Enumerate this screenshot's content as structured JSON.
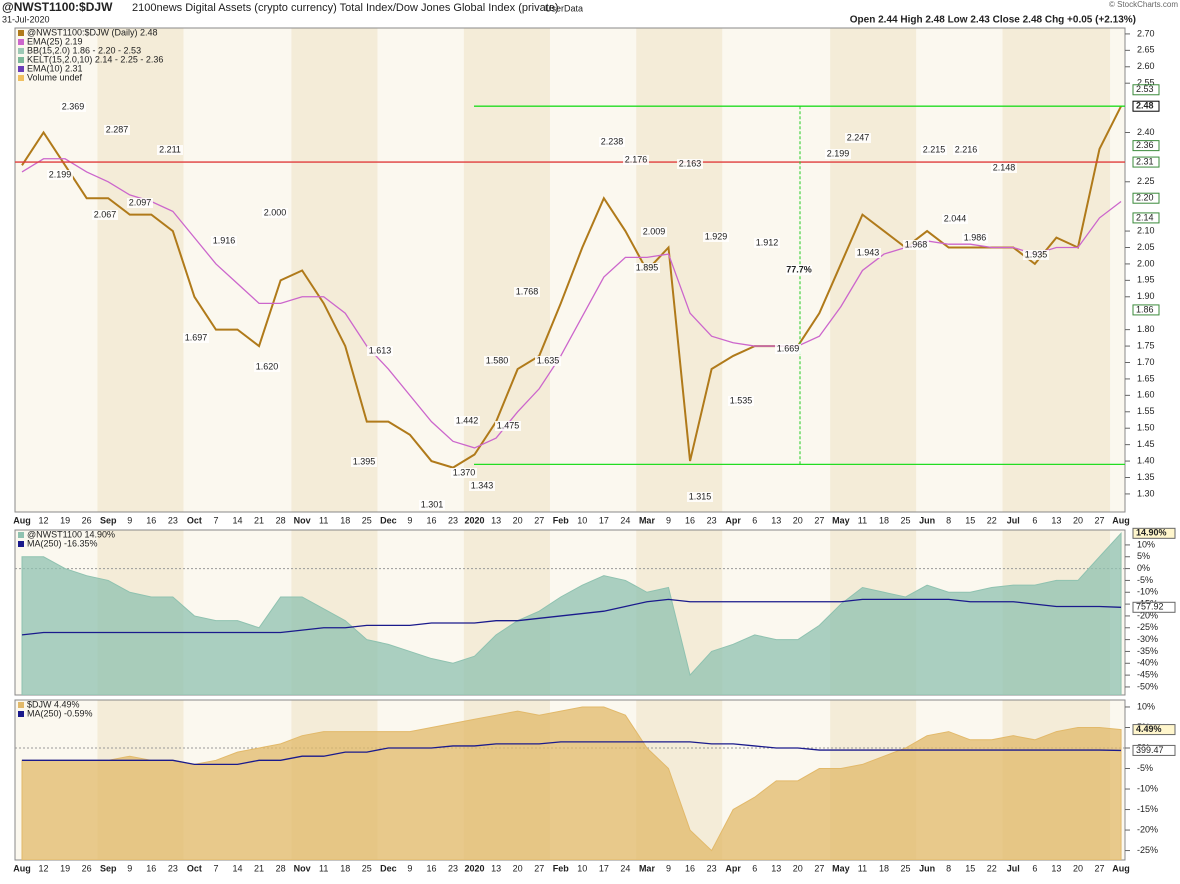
{
  "header": {
    "title": "@NWST1100:$DJW",
    "subtitle": "2100news Digital Assets (crypto currency) Total Index/Dow Jones Global Index (private)",
    "source": "UserData",
    "date": "31-Jul-2020",
    "quote": "Open 2.44  High 2.48  Low 2.43  Close 2.48  Chg +0.05 (+2.13%)",
    "credit": "© StockCharts.com"
  },
  "chart_data": [
    {
      "type": "line",
      "categories": [
        "Aug",
        "12",
        "19",
        "26",
        "Sep",
        "9",
        "16",
        "23",
        "Oct",
        "7",
        "14",
        "21",
        "28",
        "Nov",
        "11",
        "18",
        "25",
        "Dec",
        "9",
        "16",
        "23",
        "2020",
        "13",
        "20",
        "27",
        "Feb",
        "10",
        "17",
        "24",
        "Mar",
        "9",
        "16",
        "23",
        "Apr",
        "6",
        "13",
        "20",
        "27",
        "May",
        "11",
        "18",
        "25",
        "Jun",
        "8",
        "15",
        "22",
        "Jul",
        "6",
        "13",
        "20",
        "27",
        "Aug"
      ],
      "series": [
        {
          "name": "@NWST1100:$DJW (Daily) 2.48",
          "color": "#b07a1a",
          "values": [
            2.3,
            2.4,
            2.3,
            2.2,
            2.2,
            2.15,
            2.15,
            2.1,
            1.9,
            1.8,
            1.8,
            1.75,
            1.95,
            1.98,
            1.88,
            1.75,
            1.52,
            1.52,
            1.48,
            1.4,
            1.38,
            1.42,
            1.52,
            1.68,
            1.72,
            1.88,
            2.05,
            2.2,
            2.1,
            1.98,
            2.05,
            1.4,
            1.68,
            1.72,
            1.75,
            1.75,
            1.75,
            1.85,
            2.0,
            2.15,
            2.1,
            2.05,
            2.1,
            2.05,
            2.05,
            2.05,
            2.05,
            2.0,
            2.08,
            2.05,
            2.35,
            2.48
          ]
        },
        {
          "name": "EMA(25) 2.19",
          "color": "#cc66cc",
          "values": [
            2.28,
            2.32,
            2.32,
            2.28,
            2.25,
            2.21,
            2.19,
            2.16,
            2.08,
            2.0,
            1.94,
            1.88,
            1.88,
            1.9,
            1.9,
            1.85,
            1.75,
            1.68,
            1.6,
            1.52,
            1.46,
            1.44,
            1.47,
            1.55,
            1.62,
            1.72,
            1.84,
            1.96,
            2.02,
            2.02,
            2.03,
            1.85,
            1.78,
            1.76,
            1.75,
            1.75,
            1.75,
            1.78,
            1.87,
            1.98,
            2.03,
            2.05,
            2.07,
            2.06,
            2.06,
            2.05,
            2.05,
            2.03,
            2.05,
            2.05,
            2.14,
            2.19
          ]
        }
      ],
      "legend_extra": [
        "BB(15,2.0) 1.86 - 2.20 - 2.53",
        "KELT(15,2.0,10) 2.14 - 2.25 - 2.36",
        "EMA(10) 2.31",
        "Volume undef"
      ],
      "ylim": [
        1.245,
        2.718
      ],
      "yticks": [
        {
          "value": 2.7,
          "label": "2.70"
        },
        2.65,
        {
          "value": 2.6,
          "label": "2.60"
        },
        2.55,
        {
          "value": 2.4,
          "label": "2.40"
        },
        2.25,
        {
          "value": 2.1,
          "label": "2.10"
        },
        2.05,
        {
          "value": 2,
          "label": "2.00"
        },
        1.95,
        {
          "value": 1.9,
          "label": "1.90"
        },
        {
          "value": 1.8,
          "label": "1.80"
        },
        1.75,
        {
          "value": 1.7,
          "label": "1.70"
        },
        1.65,
        {
          "value": 1.6,
          "label": "1.60"
        },
        1.55,
        {
          "value": 1.5,
          "label": "1.50"
        },
        1.45,
        {
          "value": 1.4,
          "label": "1.40"
        },
        1.35,
        {
          "value": 1.3,
          "label": "1.30"
        }
      ],
      "price_tags": [
        2.53,
        2.48,
        2.36,
        2.31,
        {
          "value": 2.2,
          "label": "2.20"
        },
        2.14,
        1.86
      ],
      "levels": [
        {
          "value": 2.48,
          "color": "#22dd22"
        },
        {
          "value": 1.39,
          "color": "#22dd22"
        },
        {
          "value": 2.31,
          "color": "#e03c3c"
        }
      ],
      "annotations": [
        "2.369",
        "2.287",
        "2.199",
        "2.067",
        "2.097",
        "2.211",
        "1.916",
        "2.000",
        "1.697",
        "1.620",
        "1.613",
        "1.395",
        "1.301",
        "1.442",
        "1.370",
        "1.343",
        "1.475",
        "1.580",
        "1.768",
        "1.635",
        "2.238",
        "2.176",
        "2.009",
        "1.895",
        "2.163",
        "1.929",
        "1.315",
        "1.535",
        "1.912",
        "1.669",
        "2.247",
        "2.199",
        "1.943",
        "1.968",
        "2.215",
        "2.216",
        "2.044",
        "1.986",
        "2.148",
        "1.935",
        "77.7%"
      ]
    },
    {
      "type": "area",
      "series": [
        {
          "name": "@NWST1100 14.90%",
          "color": "#8fc2b0",
          "values": [
            5,
            5,
            0,
            -3,
            -5,
            -10,
            -12,
            -12,
            -20,
            -22,
            -22,
            -25,
            -12,
            -12,
            -17,
            -22,
            -30,
            -32,
            -35,
            -38,
            -40,
            -37,
            -28,
            -22,
            -18,
            -12,
            -7,
            -3,
            -5,
            -10,
            -8,
            -45,
            -35,
            -32,
            -28,
            -30,
            -30,
            -24,
            -15,
            -8,
            -10,
            -12,
            -7,
            -10,
            -10,
            -8,
            -7,
            -7,
            -5,
            -5,
            5,
            14.9
          ]
        },
        {
          "name": "MA(250) -16.35%",
          "color": "#1a1a8c",
          "values": [
            -28,
            -27,
            -27,
            -27,
            -27,
            -27,
            -27,
            -27,
            -27,
            -27,
            -27,
            -27,
            -27,
            -26,
            -25,
            -25,
            -24,
            -24,
            -24,
            -23,
            -23,
            -23,
            -22,
            -22,
            -21,
            -20,
            -19,
            -18,
            -16,
            -14,
            -13,
            -14,
            -14,
            -14,
            -14,
            -14,
            -14,
            -14,
            -14,
            -13,
            -13,
            -13,
            -13,
            -13,
            -14,
            -14,
            -14,
            -15,
            -16,
            -16,
            -16,
            -16.35
          ]
        }
      ],
      "ylim": [
        -53.4,
        16.3
      ],
      "yticks": [
        {
          "value": 10,
          "label": "10%"
        },
        {
          "value": 5,
          "label": "5%"
        },
        {
          "value": 0,
          "label": "0%"
        },
        {
          "value": -5,
          "label": "-5%"
        },
        {
          "value": -10,
          "label": "-10%"
        },
        {
          "value": -15,
          "label": "-15%"
        },
        {
          "value": -20,
          "label": "-20%"
        },
        {
          "value": -25,
          "label": "-25%"
        },
        {
          "value": -30,
          "label": "-30%"
        },
        {
          "value": -35,
          "label": "-35%"
        },
        {
          "value": -40,
          "label": "-40%"
        },
        {
          "value": -45,
          "label": "-45%"
        },
        {
          "value": -50,
          "label": "-50%"
        }
      ],
      "tags": [
        "14.90%",
        "757.92"
      ]
    },
    {
      "type": "area",
      "categories": [
        "Aug",
        "12",
        "19",
        "26",
        "Sep",
        "9",
        "16",
        "23",
        "Oct",
        "7",
        "14",
        "21",
        "28",
        "Nov",
        "11",
        "18",
        "25",
        "Dec",
        "9",
        "16",
        "23",
        "2020",
        "13",
        "20",
        "27",
        "Feb",
        "10",
        "17",
        "24",
        "Mar",
        "9",
        "16",
        "23",
        "Apr",
        "6",
        "13",
        "20",
        "27",
        "May",
        "11",
        "18",
        "25",
        "Jun",
        "8",
        "15",
        "22",
        "Jul",
        "6",
        "13",
        "20",
        "27",
        "Aug"
      ],
      "series": [
        {
          "name": "$DJW 4.49%",
          "color": "#e2b96a",
          "values": [
            -3,
            -3,
            -3,
            -3,
            -3,
            -2,
            -3,
            -3,
            -4,
            -3,
            -1,
            0,
            1,
            3,
            4,
            4,
            4,
            4,
            4,
            5,
            6,
            7,
            8,
            9,
            8,
            9,
            10,
            10,
            8,
            0,
            -5,
            -20,
            -25,
            -15,
            -12,
            -8,
            -8,
            -5,
            -5,
            -4,
            -2,
            0,
            3,
            4,
            2,
            2,
            3,
            2,
            4,
            5,
            5,
            4.49
          ]
        },
        {
          "name": "MA(250) -0.59%",
          "color": "#1a1a8c",
          "values": [
            -3,
            -3,
            -3,
            -3,
            -3,
            -3,
            -3,
            -3,
            -4,
            -4,
            -4,
            -3,
            -3,
            -2,
            -2,
            -1,
            -1,
            0,
            0,
            0,
            0.5,
            0.5,
            1,
            1,
            1,
            1.5,
            1.5,
            1.5,
            1.5,
            1.5,
            1.5,
            1.5,
            1,
            1,
            0.5,
            0,
            0,
            -0.5,
            -0.5,
            -0.5,
            -0.5,
            -0.5,
            -0.5,
            -0.5,
            -0.5,
            -0.5,
            -0.5,
            -0.5,
            -0.5,
            -0.5,
            -0.5,
            -0.59
          ]
        }
      ],
      "ylim": [
        -27.3,
        11.7
      ],
      "yticks": [
        {
          "value": 10,
          "label": "10%"
        },
        {
          "value": 5,
          "label": "5%"
        },
        {
          "value": 0,
          "label": "0%"
        },
        {
          "value": -5,
          "label": "-5%"
        },
        {
          "value": -10,
          "label": "-10%"
        },
        {
          "value": -15,
          "label": "-15%"
        },
        {
          "value": -20,
          "label": "-20%"
        },
        {
          "value": -25,
          "label": "-25%"
        }
      ],
      "tags": [
        "4.49%",
        "399.47"
      ]
    }
  ]
}
